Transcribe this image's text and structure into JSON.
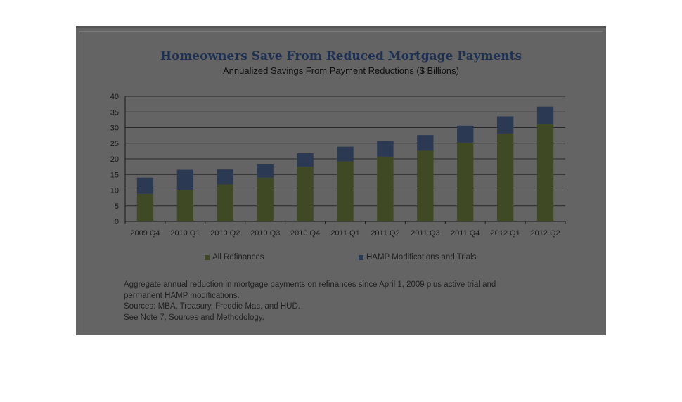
{
  "chart_data": {
    "type": "bar",
    "stacked": true,
    "title": "Homeowners Save From Reduced Mortgage Payments",
    "subtitle": "Annualized Savings From Payment Reductions ($ Billions)",
    "categories": [
      "2009 Q4",
      "2010 Q1",
      "2010 Q2",
      "2010 Q3",
      "2010 Q4",
      "2011 Q1",
      "2011 Q2",
      "2011 Q3",
      "2011 Q4",
      "2012 Q1",
      "2012 Q2"
    ],
    "series": [
      {
        "name": "All Refinances",
        "color": "#3f4a24",
        "values": [
          8.8,
          10,
          11.8,
          14,
          17.5,
          19.2,
          20.7,
          22.6,
          25.2,
          28.1,
          31
        ]
      },
      {
        "name": "HAMP Modifications and Trials",
        "color": "#2b3a52",
        "values": [
          5.2,
          6.5,
          4.8,
          4.2,
          4.3,
          4.7,
          5,
          5,
          5.4,
          5.5,
          5.7
        ]
      }
    ],
    "yticks": [
      "0",
      "5",
      "10",
      "15",
      "20",
      "25",
      "30",
      "35",
      "40"
    ],
    "ylim": [
      0,
      40
    ],
    "grid": true,
    "legend_position": "bottom"
  },
  "notes": [
    "Aggregate annual reduction in mortgage payments on refinances since April 1, 2009 plus active trial and",
    "permanent HAMP modifications.",
    "Sources:  MBA, Treasury, Freddie Mac, and HUD.",
    "See Note 7, Sources and Methodology."
  ],
  "colors": {
    "background": "#646464",
    "title": "#1e3153",
    "refinances": "#3f4a24",
    "hamp": "#2b3a52",
    "gridline": "#2a2a2a"
  }
}
